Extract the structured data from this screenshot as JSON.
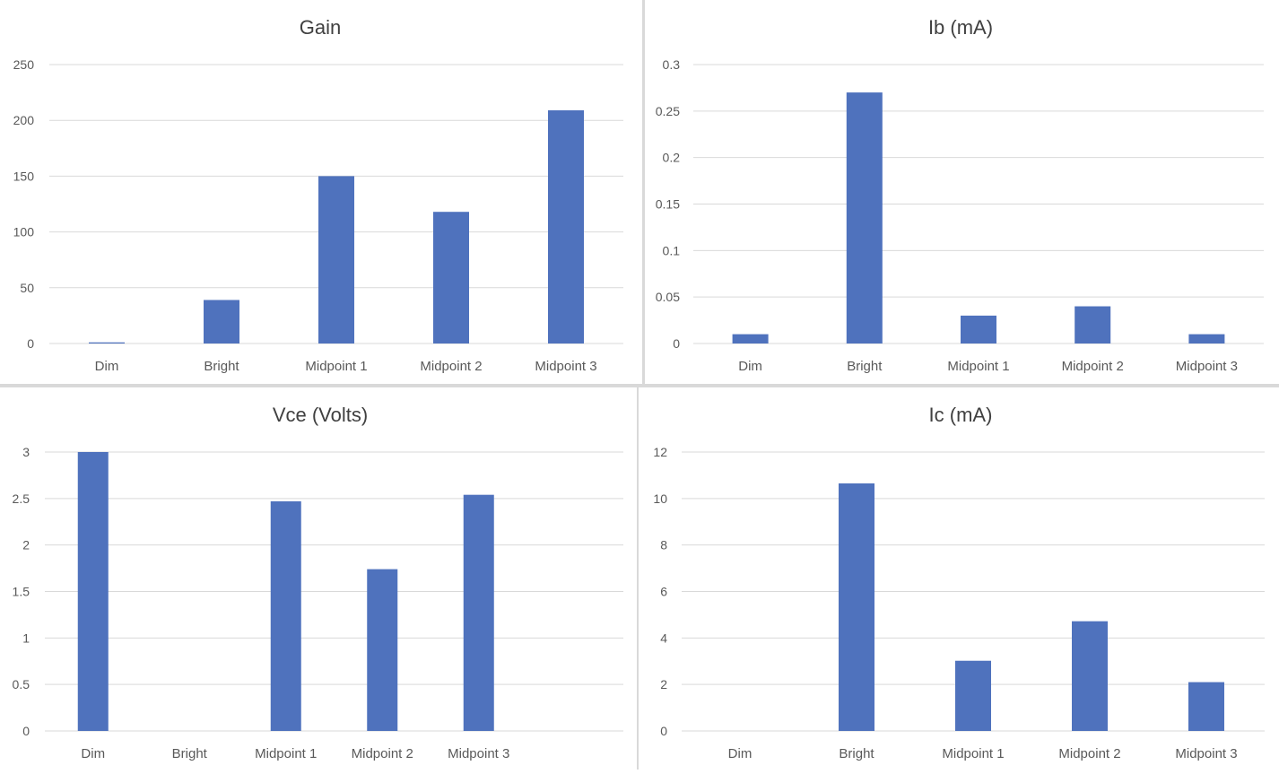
{
  "bar_color": "#4f72bd",
  "grid_color": "#d9d9d9",
  "text_color": "#595959",
  "title_color": "#404040",
  "chart_data": [
    {
      "type": "bar",
      "title": "Gain",
      "categories": [
        "Dim",
        "Bright",
        "Midpoint 1",
        "Midpoint 2",
        "Midpoint 3"
      ],
      "values": [
        1,
        39,
        150,
        118,
        209
      ],
      "ylim": [
        0,
        250
      ],
      "yticks": [
        "0",
        "50",
        "100",
        "150",
        "200",
        "250"
      ],
      "xlabel": "",
      "ylabel": "",
      "grid": true
    },
    {
      "type": "bar",
      "title": "Ib (mA)",
      "categories": [
        "Dim",
        "Bright",
        "Midpoint 1",
        "Midpoint 2",
        "Midpoint 3"
      ],
      "values": [
        0.01,
        0.27,
        0.03,
        0.04,
        0.01
      ],
      "ylim": [
        0,
        0.3
      ],
      "yticks": [
        "0",
        "0.05",
        "0.1",
        "0.15",
        "0.2",
        "0.25",
        "0.3"
      ],
      "xlabel": "",
      "ylabel": "",
      "grid": true
    },
    {
      "type": "bar",
      "title": "Vce (Volts)",
      "categories": [
        "Dim",
        "Bright",
        "Midpoint 1",
        "Midpoint 2",
        "Midpoint 3",
        ""
      ],
      "values": [
        3.0,
        0,
        2.47,
        1.74,
        2.54,
        0
      ],
      "ylim": [
        0,
        3
      ],
      "yticks": [
        "0",
        "0.5",
        "1",
        "1.5",
        "2",
        "2.5",
        "3"
      ],
      "xlabel": "",
      "ylabel": "",
      "grid": true
    },
    {
      "type": "bar",
      "title": "Ic (mA)",
      "categories": [
        "Dim",
        "Bright",
        "Midpoint 1",
        "Midpoint 2",
        "Midpoint 3"
      ],
      "values": [
        0,
        10.65,
        3.02,
        4.72,
        2.1
      ],
      "ylim": [
        0,
        12
      ],
      "yticks": [
        "0",
        "2",
        "4",
        "6",
        "8",
        "10",
        "12"
      ],
      "xlabel": "",
      "ylabel": "",
      "grid": true
    }
  ]
}
